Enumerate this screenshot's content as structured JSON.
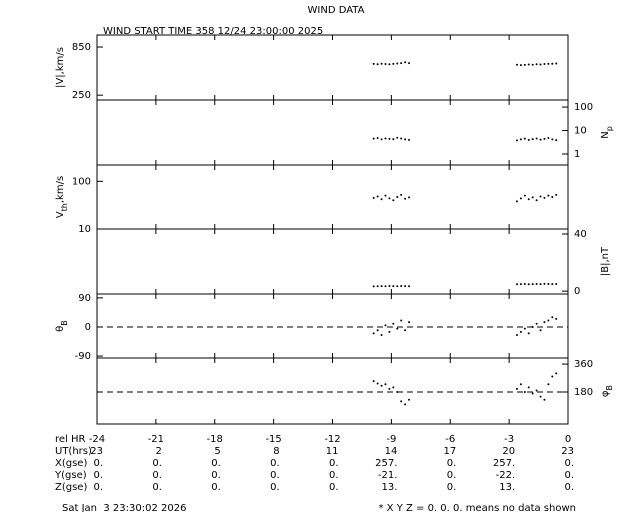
{
  "title": "WIND DATA",
  "subtitle": "WIND START TIME 358 12/24 23:00:00 2025",
  "chart_data": [
    {
      "type": "scatter",
      "side": "left",
      "color": "#000000",
      "log": false,
      "ylabel": [
        {
          "text": "|V|,km/s"
        }
      ],
      "xlim": [
        -24,
        0
      ],
      "ylim": [
        190,
        1000
      ],
      "yticks": [
        250,
        850
      ],
      "x": [
        -9.9,
        -9.7,
        -9.5,
        -9.3,
        -9.1,
        -8.9,
        -8.7,
        -8.5,
        -8.3,
        -8.1,
        -2.6,
        -2.4,
        -2.2,
        -2.0,
        -1.8,
        -1.6,
        -1.4,
        -1.2,
        -1.0,
        -0.8,
        -0.6
      ],
      "values": [
        640,
        635,
        642,
        638,
        636,
        640,
        645,
        650,
        660,
        650,
        630,
        625,
        628,
        632,
        630,
        635,
        633,
        638,
        640,
        642,
        645
      ]
    },
    {
      "type": "scatter",
      "side": "right",
      "color": "#000000",
      "log": true,
      "ylabel": [
        {
          "text": "N"
        },
        {
          "text": "p",
          "sub": true
        }
      ],
      "xlim": [
        -24,
        0
      ],
      "ylim": [
        0.34,
        200
      ],
      "yticks": [
        1,
        10,
        100
      ],
      "x": [
        -9.9,
        -9.7,
        -9.5,
        -9.3,
        -9.1,
        -8.9,
        -8.7,
        -8.5,
        -8.3,
        -8.1,
        -2.6,
        -2.4,
        -2.2,
        -2.0,
        -1.8,
        -1.6,
        -1.4,
        -1.2,
        -1.0,
        -0.8,
        -0.6
      ],
      "values": [
        4.5,
        4.8,
        4.2,
        4.6,
        4.4,
        4.3,
        4.9,
        4.6,
        4.2,
        4.0,
        3.8,
        4.2,
        4.5,
        4.0,
        4.3,
        4.6,
        4.1,
        4.4,
        4.8,
        4.2,
        3.9
      ]
    },
    {
      "type": "scatter",
      "side": "left",
      "color": "#000000",
      "log": true,
      "ylabel": [
        {
          "text": "V"
        },
        {
          "text": "th",
          "sub": true
        },
        {
          "text": ",km/s"
        }
      ],
      "xlim": [
        -24,
        0
      ],
      "ylim": [
        10,
        220
      ],
      "yticks": [
        10,
        100
      ],
      "x": [
        -9.9,
        -9.7,
        -9.5,
        -9.3,
        -9.1,
        -8.9,
        -8.7,
        -8.5,
        -8.3,
        -8.1,
        -2.6,
        -2.4,
        -2.2,
        -2.0,
        -1.8,
        -1.6,
        -1.4,
        -1.2,
        -1.0,
        -0.8,
        -0.6
      ],
      "values": [
        45,
        48,
        42,
        50,
        44,
        40,
        47,
        52,
        43,
        46,
        38,
        44,
        50,
        42,
        46,
        40,
        48,
        45,
        50,
        47,
        52
      ]
    },
    {
      "type": "scatter",
      "side": "right",
      "color": "#000000",
      "log": false,
      "ylabel": [
        {
          "text": "|B|,nT"
        }
      ],
      "xlim": [
        -24,
        0
      ],
      "ylim": [
        -2,
        43.5
      ],
      "yticks": [
        0,
        40
      ],
      "x": [
        -9.9,
        -9.7,
        -9.5,
        -9.3,
        -9.1,
        -8.9,
        -8.7,
        -8.5,
        -8.3,
        -8.1,
        -2.6,
        -2.4,
        -2.2,
        -2.0,
        -1.8,
        -1.6,
        -1.4,
        -1.2,
        -1.0,
        -0.8,
        -0.6
      ],
      "values": [
        3.3,
        3.4,
        3.5,
        3.4,
        3.6,
        3.5,
        3.4,
        3.6,
        3.5,
        3.4,
        4.8,
        4.9,
        5.0,
        4.8,
        4.9,
        5.0,
        4.9,
        5.1,
        5.0,
        4.9,
        5.0
      ]
    },
    {
      "type": "scatter",
      "side": "left",
      "color": "#000000",
      "log": false,
      "ylabel": [
        {
          "text": "θ"
        },
        {
          "text": "B",
          "sub": true
        }
      ],
      "xlim": [
        -24,
        0
      ],
      "ylim": [
        -96,
        102
      ],
      "yticks": [
        -90,
        0,
        90
      ],
      "ref_line": 0,
      "x": [
        -9.9,
        -9.7,
        -9.5,
        -9.3,
        -9.1,
        -8.9,
        -8.7,
        -8.5,
        -8.3,
        -8.1,
        -2.6,
        -2.4,
        -2.2,
        -2.0,
        -1.8,
        -1.6,
        -1.4,
        -1.2,
        -1.0,
        -0.8,
        -0.6
      ],
      "values": [
        -20,
        -10,
        -25,
        5,
        -15,
        10,
        -5,
        20,
        -10,
        15,
        -25,
        -15,
        -5,
        -20,
        0,
        10,
        -10,
        15,
        20,
        30,
        25
      ]
    },
    {
      "type": "scatter",
      "side": "right",
      "color": "#000000",
      "log": false,
      "ylabel": [
        {
          "text": "φ"
        },
        {
          "text": "B",
          "sub": true
        }
      ],
      "xlim": [
        -24,
        0
      ],
      "ylim": [
        -26,
        399
      ],
      "yticks": [
        180,
        360
      ],
      "ref_line": 180,
      "xticks": [
        -24,
        -21,
        -18,
        -15,
        -12,
        -9,
        -6,
        -3,
        0
      ],
      "x": [
        -9.9,
        -9.7,
        -9.5,
        -9.3,
        -9.1,
        -8.9,
        -8.7,
        -8.5,
        -8.3,
        -8.1,
        -2.6,
        -2.4,
        -2.2,
        -2.0,
        -1.8,
        -1.6,
        -1.4,
        -1.2,
        -1.0,
        -0.8,
        -0.6
      ],
      "values": [
        250,
        235,
        220,
        230,
        200,
        210,
        180,
        120,
        100,
        130,
        200,
        230,
        180,
        210,
        170,
        190,
        150,
        130,
        230,
        280,
        300
      ]
    }
  ],
  "table": {
    "xaxis_label": "rel HR",
    "row_labels": [
      "UT(hrs)",
      "X(gse)",
      "Y(gse)",
      "Z(gse)"
    ],
    "rows": [
      [
        "23",
        "2",
        "5",
        "8",
        "11",
        "14",
        "17",
        "20",
        "23"
      ],
      [
        "0.",
        "0.",
        "0.",
        "0.",
        "0.",
        "257.",
        "0.",
        "257.",
        "0."
      ],
      [
        "0.",
        "0.",
        "0.",
        "0.",
        "0.",
        "-21.",
        "0.",
        "-22.",
        "0."
      ],
      [
        "0.",
        "0.",
        "0.",
        "0.",
        "0.",
        "13.",
        "0.",
        "13.",
        "0."
      ]
    ]
  },
  "footer_left": "Sat Jan  3 23:30:02 2026",
  "footer_right": "* X Y Z = 0. 0. 0. means no data shown"
}
